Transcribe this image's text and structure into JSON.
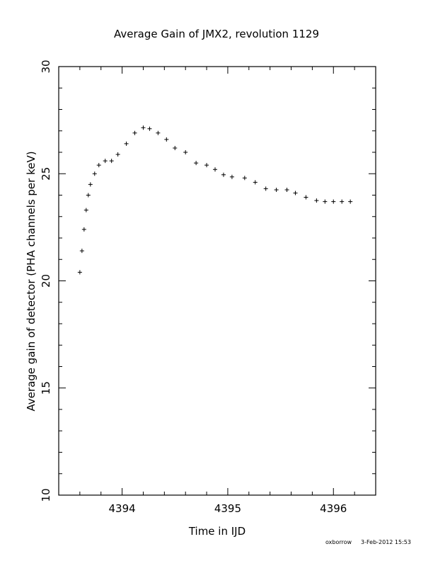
{
  "chart_data": {
    "type": "scatter",
    "title": "Average Gain of JMX2, revolution 1129",
    "xlabel": "Time in IJD",
    "ylabel": "Average gain of detector (PHA channels per keV)",
    "xlim": [
      4393.4,
      4396.4
    ],
    "ylim": [
      10,
      30
    ],
    "x_ticks": [
      4394,
      4395,
      4396
    ],
    "x_tick_labels": [
      "4394",
      "4395",
      "4396"
    ],
    "y_ticks": [
      10,
      15,
      20,
      25,
      30
    ],
    "y_tick_labels": [
      "10",
      "15",
      "20",
      "25",
      "30"
    ],
    "grid": false,
    "marker": "+",
    "color": "#000000",
    "points": [
      [
        4393.6,
        20.4
      ],
      [
        4393.62,
        21.4
      ],
      [
        4393.64,
        22.4
      ],
      [
        4393.66,
        23.3
      ],
      [
        4393.68,
        24.0
      ],
      [
        4393.7,
        24.5
      ],
      [
        4393.74,
        25.0
      ],
      [
        4393.78,
        25.4
      ],
      [
        4393.84,
        25.6
      ],
      [
        4393.9,
        25.6
      ],
      [
        4393.96,
        25.9
      ],
      [
        4394.04,
        26.4
      ],
      [
        4394.12,
        26.9
      ],
      [
        4394.2,
        27.15
      ],
      [
        4394.26,
        27.1
      ],
      [
        4394.34,
        26.9
      ],
      [
        4394.42,
        26.6
      ],
      [
        4394.5,
        26.2
      ],
      [
        4394.6,
        26.0
      ],
      [
        4394.7,
        25.5
      ],
      [
        4394.8,
        25.4
      ],
      [
        4394.88,
        25.2
      ],
      [
        4394.96,
        24.95
      ],
      [
        4395.04,
        24.85
      ],
      [
        4395.16,
        24.8
      ],
      [
        4395.26,
        24.6
      ],
      [
        4395.36,
        24.3
      ],
      [
        4395.46,
        24.25
      ],
      [
        4395.56,
        24.25
      ],
      [
        4395.64,
        24.1
      ],
      [
        4395.74,
        23.9
      ],
      [
        4395.84,
        23.75
      ],
      [
        4395.92,
        23.7
      ],
      [
        4396.0,
        23.7
      ],
      [
        4396.08,
        23.7
      ],
      [
        4396.16,
        23.7
      ]
    ]
  },
  "footer": {
    "user": "oxborrow",
    "timestamp": "3-Feb-2012 15:53"
  }
}
